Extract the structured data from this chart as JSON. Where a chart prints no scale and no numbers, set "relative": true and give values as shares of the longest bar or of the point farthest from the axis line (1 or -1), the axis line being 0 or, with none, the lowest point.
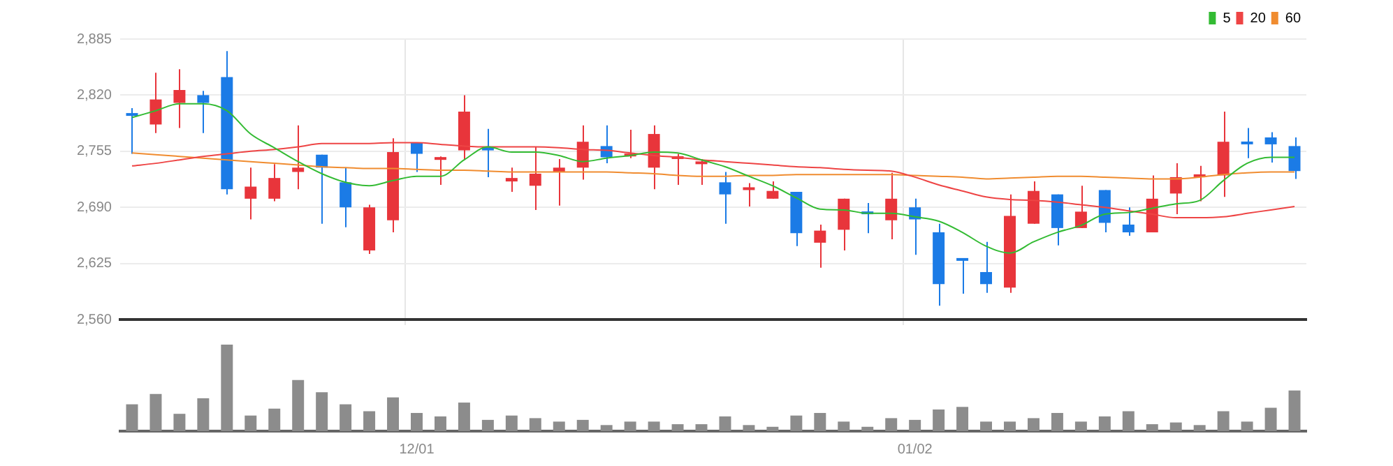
{
  "chart_data": [
    {
      "type": "candlestick",
      "categories": [
        null,
        null,
        null,
        null,
        null,
        null,
        null,
        null,
        null,
        null,
        null,
        null,
        "12/01",
        null,
        null,
        null,
        null,
        null,
        null,
        null,
        null,
        null,
        null,
        null,
        null,
        null,
        null,
        null,
        null,
        null,
        null,
        null,
        null,
        "01/02",
        null,
        null,
        null,
        null,
        null,
        null,
        null,
        null,
        null,
        null,
        null,
        null,
        null,
        null,
        null,
        null
      ],
      "ohlc": [
        [
          2798,
          2805,
          2752,
          2796
        ],
        [
          2786,
          2846,
          2776,
          2815
        ],
        [
          2811,
          2850,
          2782,
          2826
        ],
        [
          2820,
          2825,
          2776,
          2811
        ],
        [
          2841,
          2871,
          2705,
          2711
        ],
        [
          2700,
          2736,
          2676,
          2714
        ],
        [
          2700,
          2740,
          2697,
          2724
        ],
        [
          2731,
          2785,
          2711,
          2736
        ],
        [
          2751,
          2751,
          2671,
          2736
        ],
        [
          2719,
          2736,
          2667,
          2690
        ],
        [
          2640,
          2693,
          2636,
          2690
        ],
        [
          2675,
          2770,
          2661,
          2754
        ],
        [
          2765,
          2765,
          2731,
          2752
        ],
        [
          2745,
          2749,
          2716,
          2747
        ],
        [
          2756,
          2820,
          2745,
          2801
        ],
        [
          2760,
          2781,
          2725,
          2756
        ],
        [
          2720,
          2736,
          2708,
          2724
        ],
        [
          2715,
          2760,
          2687,
          2729
        ],
        [
          2731,
          2746,
          2692,
          2736
        ],
        [
          2736,
          2785,
          2722,
          2766
        ],
        [
          2761,
          2785,
          2741,
          2748
        ],
        [
          2749,
          2780,
          2747,
          2752
        ],
        [
          2736,
          2785,
          2711,
          2775
        ],
        [
          2746,
          2752,
          2716,
          2748
        ],
        [
          2740,
          2746,
          2716,
          2742
        ],
        [
          2719,
          2731,
          2671,
          2705
        ],
        [
          2710,
          2718,
          2691,
          2712
        ],
        [
          2700,
          2720,
          2700,
          2709
        ],
        [
          2708,
          2708,
          2645,
          2660
        ],
        [
          2649,
          2670,
          2620,
          2663
        ],
        [
          2664,
          2700,
          2640,
          2700
        ],
        [
          2685,
          2695,
          2660,
          2682
        ],
        [
          2675,
          2730,
          2653,
          2700
        ],
        [
          2690,
          2700,
          2635,
          2676
        ],
        [
          2661,
          2671,
          2576,
          2601
        ],
        [
          2630,
          2631,
          2590,
          2628
        ],
        [
          2615,
          2650,
          2591,
          2601
        ],
        [
          2597,
          2705,
          2591,
          2680
        ],
        [
          2671,
          2720,
          2671,
          2709
        ],
        [
          2705,
          2705,
          2646,
          2666
        ],
        [
          2666,
          2715,
          2666,
          2685
        ],
        [
          2710,
          2710,
          2661,
          2672
        ],
        [
          2670,
          2690,
          2657,
          2661
        ],
        [
          2661,
          2727,
          2661,
          2700
        ],
        [
          2706,
          2741,
          2682,
          2725
        ],
        [
          2725,
          2738,
          2697,
          2728
        ],
        [
          2727,
          2801,
          2702,
          2766
        ],
        [
          2765,
          2782,
          2747,
          2763
        ],
        [
          2771,
          2777,
          2742,
          2763
        ],
        [
          2761,
          2771,
          2723,
          2732
        ]
      ],
      "colors": [
        "#1b7be6",
        "#e8353b",
        "#e8353b",
        "#1b7be6",
        "#1b7be6",
        "#e8353b",
        "#e8353b",
        "#e8353b",
        "#1b7be6",
        "#1b7be6",
        "#e8353b",
        "#e8353b",
        "#1b7be6",
        "#e8353b",
        "#e8353b",
        "#1b7be6",
        "#e8353b",
        "#e8353b",
        "#e8353b",
        "#e8353b",
        "#1b7be6",
        "#e8353b",
        "#e8353b",
        "#e8353b",
        "#e8353b",
        "#1b7be6",
        "#e8353b",
        "#e8353b",
        "#1b7be6",
        "#e8353b",
        "#e8353b",
        "#1b7be6",
        "#e8353b",
        "#1b7be6",
        "#1b7be6",
        "#1b7be6",
        "#1b7be6",
        "#e8353b",
        "#e8353b",
        "#1b7be6",
        "#e8353b",
        "#1b7be6",
        "#1b7be6",
        "#e8353b",
        "#e8353b",
        "#e8353b",
        "#e8353b",
        "#1b7be6",
        "#1b7be6",
        "#1b7be6"
      ],
      "series": [
        {
          "name": "5",
          "type": "line",
          "color": "#33bb33",
          "values": [
            2794,
            2802,
            2810,
            2810,
            2802,
            2775,
            2759,
            2743,
            2729,
            2719,
            2715,
            2721,
            2726,
            2726,
            2745,
            2760,
            2754,
            2754,
            2750,
            2743,
            2747,
            2750,
            2754,
            2753,
            2745,
            2737,
            2726,
            2715,
            2701,
            2688,
            2687,
            2683,
            2683,
            2679,
            2674,
            2661,
            2645,
            2637,
            2650,
            2661,
            2669,
            2682,
            2684,
            2689,
            2694,
            2698,
            2721,
            2741,
            2748,
            2748
          ]
        },
        {
          "name": "20",
          "type": "line",
          "color": "#ee4444",
          "values": [
            2738,
            2741,
            2745,
            2749,
            2752,
            2755,
            2757,
            2760,
            2764,
            2764,
            2764,
            2765,
            2765,
            2763,
            2761,
            2760,
            2760,
            2760,
            2759,
            2757,
            2756,
            2753,
            2750,
            2748,
            2745,
            2743,
            2741,
            2739,
            2737,
            2736,
            2734,
            2733,
            2732,
            2725,
            2716,
            2709,
            2702,
            2699,
            2698,
            2696,
            2693,
            2690,
            2686,
            2682,
            2678,
            2678,
            2679,
            2683,
            2687,
            2691
          ]
        },
        {
          "name": "60",
          "type": "line",
          "color": "#f08c30",
          "values": [
            2753,
            2751,
            2749,
            2747,
            2745,
            2743,
            2741,
            2739,
            2737,
            2736,
            2735,
            2735,
            2734,
            2733,
            2733,
            2732,
            2731,
            2731,
            2731,
            2731,
            2731,
            2730,
            2729,
            2727,
            2726,
            2726,
            2727,
            2727,
            2728,
            2728,
            2728,
            2728,
            2728,
            2727,
            2726,
            2725,
            2723,
            2724,
            2725,
            2726,
            2726,
            2725,
            2724,
            2723,
            2723,
            2725,
            2728,
            2730,
            2731,
            2731
          ]
        }
      ],
      "ylim": [
        2560,
        2885
      ],
      "yticks": [
        {
          "value": 2560,
          "label": "2,560"
        },
        {
          "value": 2625,
          "label": "2,625"
        },
        {
          "value": 2690,
          "label": "2,690"
        },
        {
          "value": 2755,
          "label": "2,755"
        },
        {
          "value": 2820,
          "label": "2,820"
        },
        {
          "value": 2885,
          "label": "2,885"
        }
      ],
      "grid": true,
      "legend": "top right",
      "tick_labels": "y"
    },
    {
      "type": "bar",
      "categories": [
        null,
        null,
        null,
        null,
        null,
        null,
        null,
        null,
        null,
        null,
        null,
        null,
        "12/01",
        null,
        null,
        null,
        null,
        null,
        null,
        null,
        null,
        null,
        null,
        null,
        null,
        null,
        null,
        null,
        null,
        null,
        null,
        null,
        null,
        "01/02",
        null,
        null,
        null,
        null,
        null,
        null,
        null,
        null,
        null,
        null,
        null,
        null,
        null,
        null,
        null,
        null
      ],
      "values": [
        0.31,
        0.43,
        0.2,
        0.38,
        1,
        0.18,
        0.26,
        0.59,
        0.45,
        0.31,
        0.23,
        0.39,
        0.21,
        0.17,
        0.33,
        0.13,
        0.18,
        0.15,
        0.11,
        0.13,
        0.07,
        0.11,
        0.11,
        0.08,
        0.08,
        0.17,
        0.07,
        0.05,
        0.18,
        0.21,
        0.11,
        0.05,
        0.15,
        0.13,
        0.25,
        0.28,
        0.11,
        0.11,
        0.15,
        0.21,
        0.11,
        0.17,
        0.23,
        0.08,
        0.1,
        0.07,
        0.23,
        0.11,
        0.27,
        0.47
      ],
      "color": "#8c8c8c",
      "relative": true,
      "tick_labels": "x"
    }
  ]
}
